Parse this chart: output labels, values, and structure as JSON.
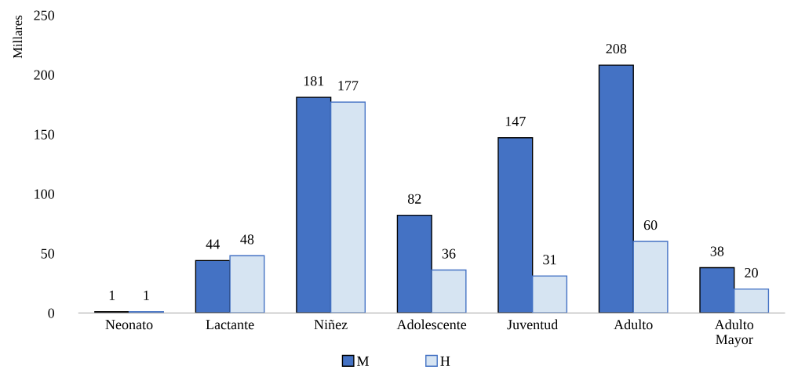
{
  "chart_data": {
    "type": "bar",
    "ylabel": "Millares",
    "categories": [
      "Neonato",
      "Lactante",
      "Niñez",
      "Adolescente",
      "Juventud",
      "Adulto",
      "Adulto Mayor"
    ],
    "series": [
      {
        "name": "M",
        "color": "#4472c4",
        "values": [
          1,
          44,
          181,
          82,
          147,
          208,
          38
        ]
      },
      {
        "name": "H",
        "color": "#d6e4f2",
        "values": [
          1,
          48,
          177,
          36,
          31,
          60,
          20
        ]
      }
    ],
    "ylim": [
      0,
      250
    ],
    "yticks": [
      0,
      50,
      100,
      150,
      200,
      250
    ],
    "grid": false,
    "legend": "bottom",
    "data_labels": true
  }
}
